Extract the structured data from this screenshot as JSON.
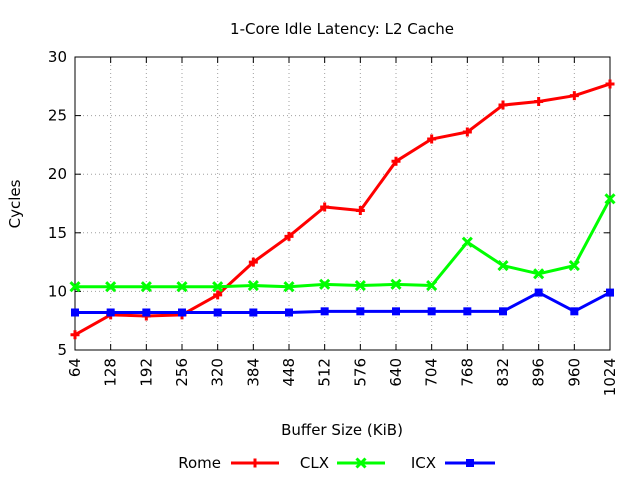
{
  "chart_data": {
    "type": "line",
    "title": "1-Core Idle Latency: L2 Cache",
    "xlabel": "Buffer Size (KiB)",
    "ylabel": "Cycles",
    "categories": [
      "64",
      "128",
      "192",
      "256",
      "320",
      "384",
      "448",
      "512",
      "576",
      "640",
      "704",
      "768",
      "832",
      "896",
      "960",
      "1024"
    ],
    "ylim": [
      5,
      30
    ],
    "yticks": [
      "5",
      "10",
      "15",
      "20",
      "25",
      "30"
    ],
    "grid": true,
    "legend_position": "bottom",
    "series": [
      {
        "name": "Rome",
        "color": "#ff0000",
        "marker": "plus",
        "values": [
          6.3,
          8.0,
          7.9,
          8.0,
          9.7,
          12.5,
          14.7,
          17.2,
          16.9,
          21.1,
          23.0,
          23.6,
          25.9,
          26.2,
          26.7,
          27.7
        ]
      },
      {
        "name": "CLX",
        "color": "#00ff00",
        "marker": "cross",
        "values": [
          10.4,
          10.4,
          10.4,
          10.4,
          10.4,
          10.5,
          10.4,
          10.6,
          10.5,
          10.6,
          10.5,
          14.2,
          12.2,
          11.5,
          12.2,
          17.9
        ]
      },
      {
        "name": "ICX",
        "color": "#0000ff",
        "marker": "square",
        "values": [
          8.2,
          8.2,
          8.2,
          8.2,
          8.2,
          8.2,
          8.2,
          8.3,
          8.3,
          8.3,
          8.3,
          8.3,
          8.3,
          9.9,
          8.3,
          9.9
        ]
      }
    ]
  }
}
